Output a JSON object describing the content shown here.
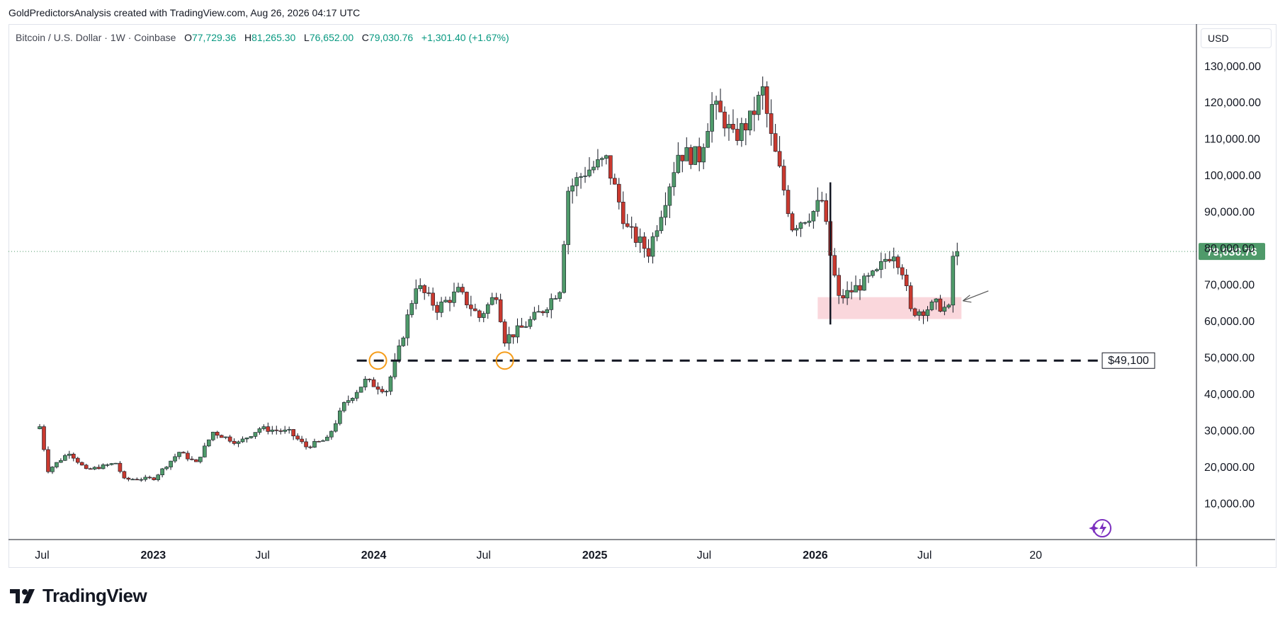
{
  "header": {
    "attribution": "GoldPredictorsAnalysis created with TradingView.com, Aug 26, 2026 04:17 UTC"
  },
  "legend": {
    "symbol": "Bitcoin / U.S. Dollar · 1W · Coinbase",
    "open_label": "O",
    "open": "77,729.36",
    "high_label": "H",
    "high": "81,265.30",
    "low_label": "L",
    "low": "76,652.00",
    "close_label": "C",
    "close": "79,030.76",
    "change": "+1,301.40 (+1.67%)"
  },
  "currency": "USD",
  "price_tag": "79,030.76",
  "support_label": "$49,100",
  "brand": "TradingView",
  "colors": {
    "up": "#4f9a6a",
    "down": "#c9392f",
    "price_tag": "#4f9a6a",
    "zone": "#f8c9d0",
    "circle": "#f59d1b",
    "text_green": "#089981"
  },
  "chart_data": {
    "type": "candlestick",
    "ylim": [
      0,
      135000
    ],
    "y_ticks": [
      "130,000.00",
      "120,000.00",
      "110,000.00",
      "100,000.00",
      "90,000.00",
      "80,000.00",
      "70,000.00",
      "60,000.00",
      "50,000.00",
      "40,000.00",
      "30,000.00",
      "20,000.00",
      "10,000.00"
    ],
    "x_ticks": [
      "Jul",
      "2023",
      "Jul",
      "2024",
      "Jul",
      "2025",
      "Jul",
      "2026",
      "Jul",
      "20"
    ],
    "keypoints": [
      [
        "2022-06-27",
        31000
      ],
      [
        "2022-07-11",
        19000
      ],
      [
        "2022-08-15",
        24000
      ],
      [
        "2022-09-12",
        19000
      ],
      [
        "2022-10-31",
        21000
      ],
      [
        "2022-11-14",
        16500
      ],
      [
        "2023-01-02",
        16800
      ],
      [
        "2023-02-13",
        24000
      ],
      [
        "2023-03-13",
        21000
      ],
      [
        "2023-04-10",
        29500
      ],
      [
        "2023-05-22",
        26500
      ],
      [
        "2023-06-26",
        30500
      ],
      [
        "2023-08-14",
        29500
      ],
      [
        "2023-09-11",
        25500
      ],
      [
        "2023-10-16",
        27500
      ],
      [
        "2023-11-13",
        37000
      ],
      [
        "2023-12-18",
        43500
      ],
      [
        "2024-01-22",
        41000
      ],
      [
        "2024-02-12",
        52000
      ],
      [
        "2024-03-11",
        70000
      ],
      [
        "2024-04-15",
        63500
      ],
      [
        "2024-05-20",
        68000
      ],
      [
        "2024-06-24",
        61000
      ],
      [
        "2024-07-22",
        67500
      ],
      [
        "2024-08-05",
        55000
      ],
      [
        "2024-09-02",
        58000
      ],
      [
        "2024-10-07",
        63000
      ],
      [
        "2024-11-04",
        69000
      ],
      [
        "2024-11-18",
        96000
      ],
      [
        "2024-12-16",
        101000
      ],
      [
        "2025-01-20",
        104000
      ],
      [
        "2025-02-24",
        85000
      ],
      [
        "2025-03-31",
        79000
      ],
      [
        "2025-04-28",
        94000
      ],
      [
        "2025-05-19",
        106000
      ],
      [
        "2025-06-23",
        105000
      ],
      [
        "2025-07-14",
        119000
      ],
      [
        "2025-08-04",
        115000
      ],
      [
        "2025-08-18",
        110000
      ],
      [
        "2025-09-15",
        115000
      ],
      [
        "2025-10-06",
        123000
      ],
      [
        "2025-10-20",
        110000
      ],
      [
        "2025-11-03",
        101000
      ],
      [
        "2025-11-24",
        86000
      ],
      [
        "2025-12-29",
        90000
      ],
      [
        "2026-01-12",
        93000
      ],
      [
        "2026-01-26",
        78000
      ],
      [
        "2026-02-09",
        66000
      ],
      [
        "2026-03-09",
        69000
      ],
      [
        "2026-04-13",
        73000
      ],
      [
        "2026-04-27",
        77000
      ],
      [
        "2026-05-11",
        79000
      ],
      [
        "2026-05-25",
        74000
      ],
      [
        "2026-06-08",
        62500
      ],
      [
        "2026-06-29",
        63000
      ],
      [
        "2026-07-20",
        64500
      ],
      [
        "2026-08-10",
        63000
      ],
      [
        "2026-08-17",
        77700
      ],
      [
        "2026-08-24",
        79030
      ]
    ],
    "annotations": {
      "support_level": 49100,
      "demand_zone": {
        "from": "2026-01-05",
        "to": "2026-08-24",
        "low": 60500,
        "high": 66500
      },
      "vertical_line": {
        "date": "2026-01-26",
        "low": 59000,
        "high": 98000
      },
      "circles": [
        {
          "date": "2024-01-08",
          "price": 49100
        },
        {
          "date": "2024-08-05",
          "price": 49100
        }
      ],
      "support_start": "2023-12-04",
      "current_price": 79030.76
    }
  }
}
